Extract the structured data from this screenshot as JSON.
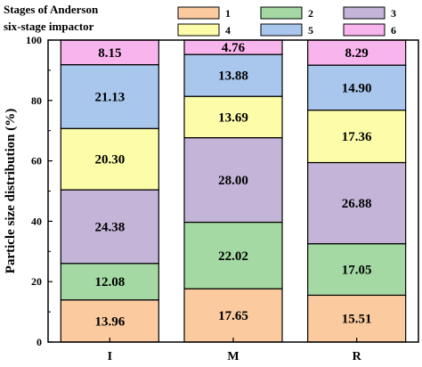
{
  "chart_data": {
    "type": "bar",
    "stacked": true,
    "title": "",
    "xlabel": "",
    "ylabel": "Particle size distribution (%)",
    "ylim": [
      0,
      100
    ],
    "yticks": [
      "0",
      "20",
      "40",
      "60",
      "80",
      "100"
    ],
    "categories": [
      "I",
      "M",
      "R"
    ],
    "legend": {
      "title_line1": "Stages of Anderson",
      "title_line2": "six-stage impactor",
      "placement": "top"
    },
    "series": [
      {
        "name": "1",
        "color": "#fbcb9f",
        "values": [
          13.96,
          17.65,
          15.51
        ],
        "labels": [
          "13.96",
          "17.65",
          "15.51"
        ]
      },
      {
        "name": "2",
        "color": "#a4d9a4",
        "values": [
          12.08,
          22.02,
          17.05
        ],
        "labels": [
          "12.08",
          "22.02",
          "17.05"
        ]
      },
      {
        "name": "3",
        "color": "#c4b5d8",
        "values": [
          24.38,
          28.0,
          26.88
        ],
        "labels": [
          "24.38",
          "28.00",
          "26.88"
        ]
      },
      {
        "name": "4",
        "color": "#fdfda9",
        "values": [
          20.3,
          13.69,
          17.36
        ],
        "labels": [
          "20.30",
          "13.69",
          "17.36"
        ]
      },
      {
        "name": "5",
        "color": "#a9c6ec",
        "values": [
          21.13,
          13.88,
          14.9
        ],
        "labels": [
          "21.13",
          "13.88",
          "14.90"
        ]
      },
      {
        "name": "6",
        "color": "#f8b4ec",
        "values": [
          8.15,
          4.76,
          8.29
        ],
        "labels": [
          "8.15",
          "4.76",
          "8.29"
        ]
      }
    ]
  }
}
